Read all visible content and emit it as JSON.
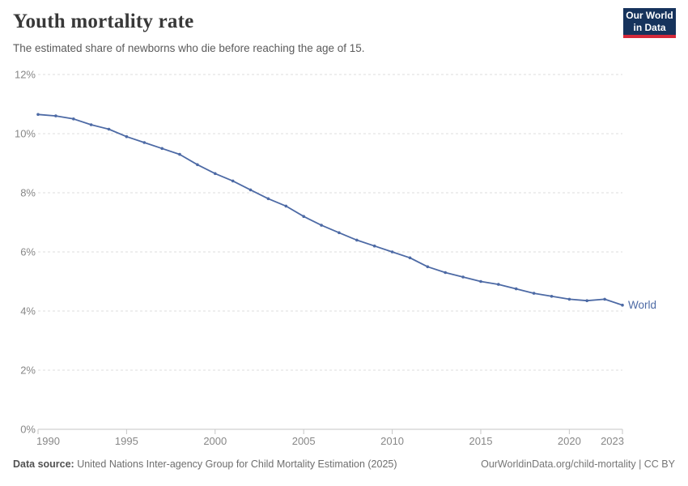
{
  "header": {
    "title": "Youth mortality rate",
    "subtitle": "The estimated share of newborns who die before reaching the age of 15.",
    "logo": {
      "line1": "Our World",
      "line2": "in Data",
      "bg_color": "#16335c",
      "accent_color": "#d4293a",
      "text_color": "#ffffff"
    }
  },
  "chart_data": {
    "type": "line",
    "title": "Youth mortality rate",
    "subtitle": "The estimated share of newborns who die before reaching the age of 15.",
    "x": [
      1990,
      1991,
      1992,
      1993,
      1994,
      1995,
      1996,
      1997,
      1998,
      1999,
      2000,
      2001,
      2002,
      2003,
      2004,
      2005,
      2006,
      2007,
      2008,
      2009,
      2010,
      2011,
      2012,
      2013,
      2014,
      2015,
      2016,
      2017,
      2018,
      2019,
      2020,
      2021,
      2022,
      2023
    ],
    "series": [
      {
        "name": "World",
        "color": "#4d6aa5",
        "values": [
          10.65,
          10.6,
          10.5,
          10.3,
          10.15,
          9.9,
          9.7,
          9.5,
          9.3,
          8.95,
          8.65,
          8.4,
          8.1,
          7.8,
          7.55,
          7.2,
          6.9,
          6.65,
          6.4,
          6.2,
          6.0,
          5.8,
          5.5,
          5.3,
          5.15,
          5.0,
          4.9,
          4.75,
          4.6,
          4.5,
          4.4,
          4.35,
          4.4,
          4.2
        ]
      }
    ],
    "end_label": "World",
    "xlabel": "",
    "ylabel": "",
    "ylim": [
      0,
      12
    ],
    "yticks": [
      0,
      2,
      4,
      6,
      8,
      10,
      12
    ],
    "ytick_suffix": "%",
    "xticks": [
      1990,
      1995,
      2000,
      2005,
      2010,
      2015,
      2020,
      2023
    ],
    "grid": "horizontal-dashed",
    "legend_position": "end-of-line"
  },
  "footer": {
    "source_label": "Data source:",
    "source_text": " United Nations Inter-agency Group for Child Mortality Estimation (2025)",
    "credit": "OurWorldinData.org/child-mortality | CC BY"
  },
  "colors": {
    "line": "#4d6aa5",
    "gridline": "#dcdcdc",
    "axis_line": "#c6c6c6",
    "tick_text": "#878787",
    "title_text": "#383838",
    "subtitle_text": "#5b5b5b"
  }
}
